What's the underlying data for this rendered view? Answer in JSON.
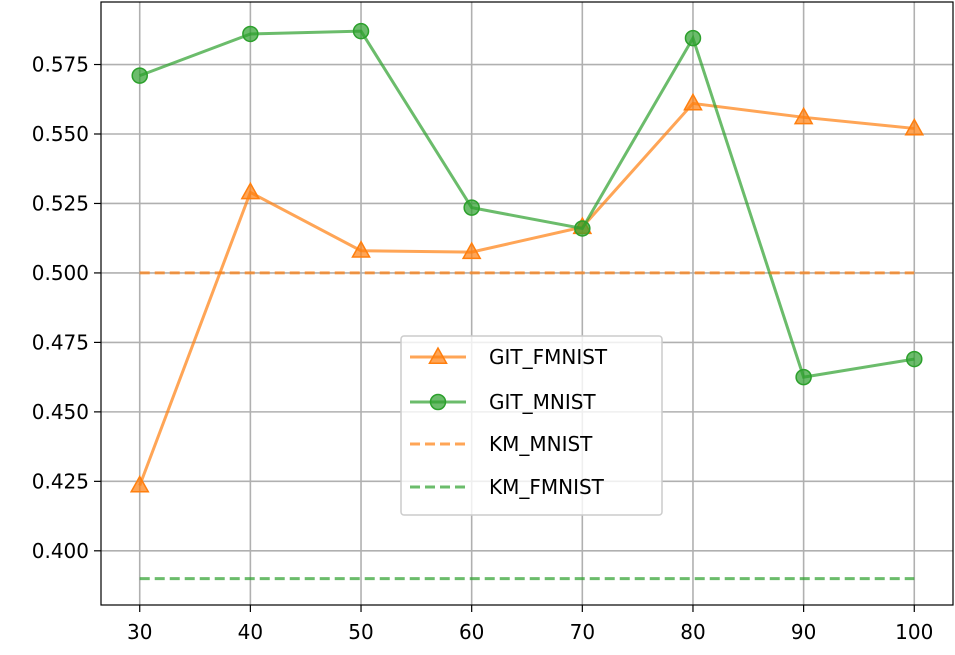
{
  "chart_data": {
    "type": "line",
    "title": "",
    "xlabel": "",
    "ylabel": "",
    "x": [
      30,
      40,
      50,
      60,
      70,
      80,
      90,
      100
    ],
    "xticks": [
      "30",
      "40",
      "50",
      "60",
      "70",
      "80",
      "90",
      "100"
    ],
    "yticks": [
      "0.400",
      "0.425",
      "0.450",
      "0.475",
      "0.500",
      "0.525",
      "0.550",
      "0.575"
    ],
    "xlim": [
      26.5,
      103.5
    ],
    "ylim": [
      0.3805,
      0.5975
    ],
    "grid": true,
    "legend_position": "center",
    "series": [
      {
        "name": "GIT_FMNIST",
        "color": "#ff7f0e",
        "style": "solid",
        "marker": "triangle",
        "values": [
          0.4235,
          0.529,
          0.508,
          0.5075,
          0.5165,
          0.561,
          0.556,
          0.552
        ]
      },
      {
        "name": "GIT_MNIST",
        "color": "#2ca02c",
        "style": "solid",
        "marker": "circle",
        "values": [
          0.571,
          0.586,
          0.587,
          0.5235,
          0.516,
          0.5845,
          0.4625,
          0.469
        ]
      },
      {
        "name": "KM_MNIST",
        "color": "#ff7f0e",
        "style": "dashed",
        "marker": "none",
        "values": [
          0.5,
          0.5,
          0.5,
          0.5,
          0.5,
          0.5,
          0.5,
          0.5
        ]
      },
      {
        "name": "KM_FMNIST",
        "color": "#2ca02c",
        "style": "dashed",
        "marker": "none",
        "values": [
          0.39,
          0.39,
          0.39,
          0.39,
          0.39,
          0.39,
          0.39,
          0.39
        ]
      }
    ]
  }
}
